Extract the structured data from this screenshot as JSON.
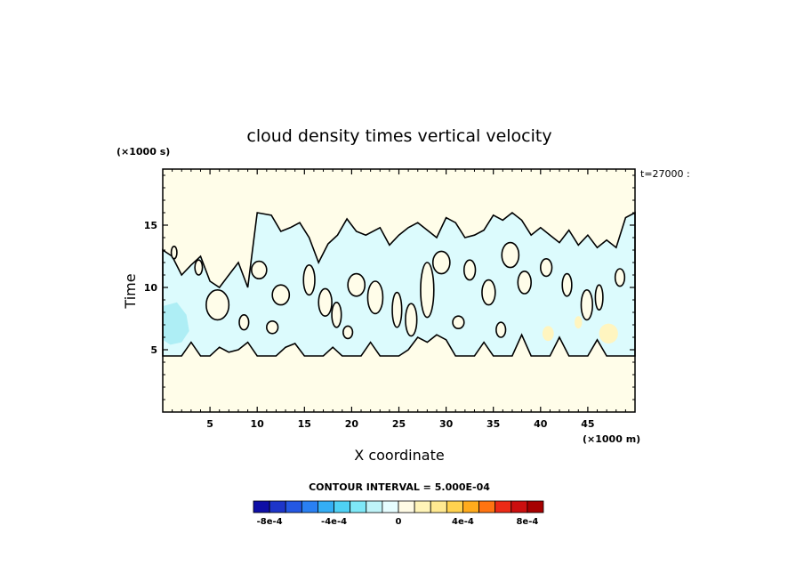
{
  "chart_data": {
    "type": "contour",
    "title": "cloud density times vertical velocity",
    "xlabel": "X coordinate",
    "ylabel": "Time",
    "x_unit": "(×1000 m)",
    "y_unit": "(×1000 s)",
    "time_stamp": "t=27000 :",
    "xlim": [
      0,
      50
    ],
    "ylim": [
      0,
      19.5
    ],
    "xticks": [
      5,
      10,
      15,
      20,
      25,
      30,
      35,
      40,
      45
    ],
    "yticks": [
      5,
      10,
      15
    ],
    "grid": false,
    "background_color": "#fffde9",
    "contour_interval_text": "CONTOUR INTERVAL = 5.000E-04",
    "colorbar": {
      "colors": [
        "#0f0fa6",
        "#1d35c9",
        "#2458e3",
        "#2a80f2",
        "#34aef5",
        "#4fd1f5",
        "#7ee8f7",
        "#bff3f8",
        "#e6fdff",
        "#fffbe5",
        "#fff4b8",
        "#ffe991",
        "#ffd24f",
        "#ffab1c",
        "#ff7411",
        "#ec2a16",
        "#cc0f0f",
        "#a60000"
      ],
      "tick_labels": [
        "-8e-4",
        "-4e-4",
        "0",
        "4e-4",
        "8e-4"
      ],
      "tick_values": [
        -0.0008,
        -0.0004,
        0,
        0.0004,
        0.0008
      ],
      "range": [
        -0.0009,
        0.0009
      ]
    },
    "regions": [
      {
        "level": "negative",
        "color": "#d8fbfd",
        "bounds": {
          "x": [
            0,
            50
          ],
          "y": [
            4.5,
            16
          ]
        }
      },
      {
        "level": "negative-strong",
        "color": "#a8ecf3",
        "bounds": {
          "x": [
            0,
            3
          ],
          "y": [
            5.5,
            8.5
          ]
        }
      },
      {
        "level": "positive-weak",
        "color": "#fff7c8",
        "bounds": {
          "x": [
            40,
            48
          ],
          "y": [
            5.5,
            7.5
          ]
        }
      }
    ]
  }
}
